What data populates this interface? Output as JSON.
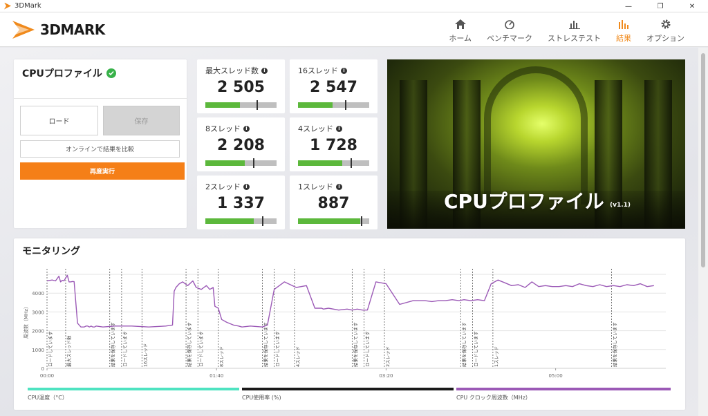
{
  "window": {
    "title": "3DMark",
    "controls": [
      "—",
      "❐",
      "✕"
    ]
  },
  "logo": {
    "text": "3DMARK"
  },
  "nav": [
    {
      "label": "ホーム",
      "icon": "home-icon",
      "active": false
    },
    {
      "label": "ベンチマーク",
      "icon": "gauge-icon",
      "active": false
    },
    {
      "label": "ストレステスト",
      "icon": "stress-chart-icon",
      "active": false
    },
    {
      "label": "結果",
      "icon": "bar-chart-icon",
      "active": true
    },
    {
      "label": "オプション",
      "icon": "gear-icon",
      "active": false
    }
  ],
  "profile": {
    "title": "CPUプロファイル",
    "load_label": "ロード",
    "save_label": "保存",
    "compare_label": "オンラインで結果を比較",
    "rerun_label": "再度実行"
  },
  "scores": [
    {
      "label": "最大スレッド数",
      "value": "2 505",
      "fill": 0.49,
      "marker": 0.72
    },
    {
      "label": "16スレッド",
      "value": "2 547",
      "fill": 0.49,
      "marker": 0.66
    },
    {
      "label": "8スレッド",
      "value": "2 208",
      "fill": 0.55,
      "marker": 0.67
    },
    {
      "label": "4スレッド",
      "value": "1 728",
      "fill": 0.62,
      "marker": 0.74
    },
    {
      "label": "2スレッド",
      "value": "1 337",
      "fill": 0.68,
      "marker": 0.8
    },
    {
      "label": "1スレッド",
      "value": "887",
      "fill": 0.87,
      "marker": 0.88
    }
  ],
  "hero": {
    "title": "CPUプロファイル",
    "version": "(v1.1)"
  },
  "monitoring": {
    "title": "モニタリング",
    "legend": [
      {
        "label": "CPU温度（°C）",
        "color": "#4fe3c1"
      },
      {
        "label": "CPU使用率 (%)",
        "color": "#1a1a1a"
      },
      {
        "label": "CPU クロック周波数（MHz）",
        "color": "#9b59b6"
      }
    ]
  },
  "chart_data": {
    "type": "line",
    "title": "",
    "xlabel": "",
    "ylabel": "周波数（MHz）",
    "xlim": [
      0,
      365
    ],
    "ylim": [
      0,
      5000
    ],
    "x_ticks": [
      "00:00",
      "01:40",
      "03:20",
      "05:00"
    ],
    "x_tick_seconds": [
      0,
      100,
      200,
      300
    ],
    "y_ticks": [
      0,
      1000,
      2000,
      3000,
      4000
    ],
    "grid": true,
    "series": [
      {
        "name": "CPU クロック周波数（MHz）",
        "color": "#9b59b6",
        "x": [
          0,
          3,
          5,
          7,
          8,
          9,
          10,
          12,
          13,
          14,
          15,
          16,
          18,
          20,
          21,
          22,
          23,
          24,
          25,
          26,
          27,
          28,
          29,
          33,
          40,
          50,
          60,
          70,
          74,
          75,
          76,
          78,
          80,
          83,
          86,
          88,
          91,
          94,
          96,
          98,
          99,
          101,
          103,
          106,
          110,
          113,
          115,
          120,
          127,
          130,
          134,
          140,
          147,
          153,
          158,
          162,
          163,
          166,
          172,
          177,
          180,
          183,
          186,
          189,
          194,
          200,
          208,
          216,
          223,
          227,
          231,
          235,
          239,
          243,
          246,
          250,
          254,
          258,
          262,
          266,
          270,
          274,
          278,
          282,
          286,
          290,
          294,
          298,
          302,
          306,
          310,
          314,
          318,
          322,
          326,
          330,
          334,
          338,
          342,
          346,
          350,
          354,
          358
        ],
        "y": [
          4650,
          4700,
          4650,
          4900,
          4600,
          4680,
          4650,
          4950,
          4600,
          4600,
          4620,
          4610,
          2400,
          2200,
          2200,
          2200,
          2250,
          2250,
          2200,
          2250,
          2200,
          2200,
          2250,
          2200,
          2250,
          2250,
          2200,
          2250,
          2300,
          4100,
          4300,
          4500,
          4600,
          4400,
          4650,
          4300,
          4200,
          4400,
          4200,
          4300,
          3300,
          3200,
          2600,
          2450,
          2300,
          2250,
          2200,
          2250,
          2200,
          2300,
          4200,
          4600,
          4300,
          4400,
          3200,
          3200,
          3150,
          3200,
          3100,
          3150,
          3100,
          3150,
          3100,
          3100,
          4600,
          4500,
          3400,
          3600,
          3600,
          3550,
          3600,
          3600,
          3650,
          3600,
          3650,
          3600,
          3650,
          3600,
          4500,
          4700,
          4550,
          4400,
          4450,
          4300,
          4600,
          4350,
          4400,
          4350,
          4350,
          4400,
          4350,
          4500,
          4400,
          4350,
          4450,
          4350,
          4400,
          4350,
          4450,
          4400,
          4500,
          4350,
          4400
        ]
      }
    ],
    "annotations": [
      {
        "x": 0,
        "label": "ロードしています"
      },
      {
        "x": 11,
        "label": "最大スレッド数"
      },
      {
        "x": 37,
        "label": "結果を保存しています"
      },
      {
        "x": 44,
        "label": "ロードしています"
      },
      {
        "x": 56,
        "label": "16スレッド"
      },
      {
        "x": 82,
        "label": "結果を保存しています"
      },
      {
        "x": 89,
        "label": "ロードしています"
      },
      {
        "x": 101,
        "label": "8スレッド"
      },
      {
        "x": 127,
        "label": "結果を保存しています"
      },
      {
        "x": 134,
        "label": "ロードしています"
      },
      {
        "x": 146,
        "label": "4スレッド"
      },
      {
        "x": 180,
        "label": "結果を保存しています"
      },
      {
        "x": 187,
        "label": "ロードしています"
      },
      {
        "x": 199,
        "label": "2スレッド"
      },
      {
        "x": 244,
        "label": "結果を保存しています"
      },
      {
        "x": 251,
        "label": "ロードしています"
      },
      {
        "x": 263,
        "label": "1スレッド"
      },
      {
        "x": 333,
        "label": "結果を保存しています"
      }
    ]
  }
}
